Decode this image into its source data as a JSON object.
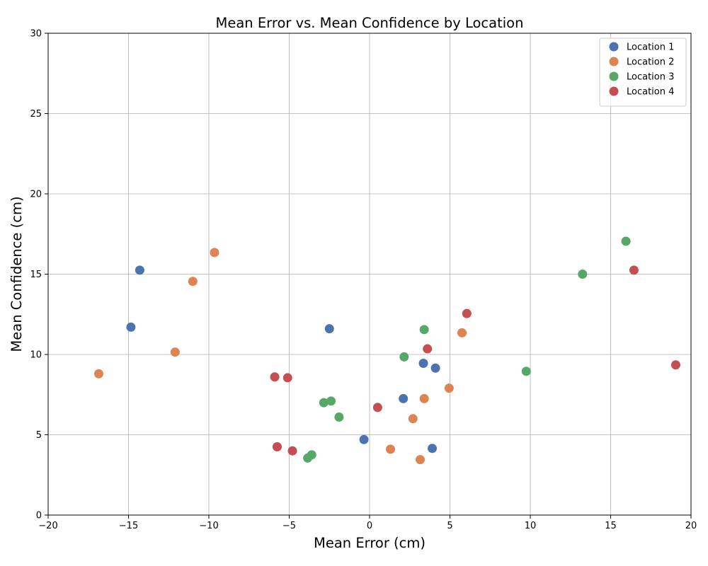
{
  "chart_data": {
    "type": "scatter",
    "title": "Mean Error vs. Mean Confidence by Location",
    "xlabel": "Mean Error (cm)",
    "ylabel": "Mean Confidence (cm)",
    "xlim": [
      -20,
      20
    ],
    "ylim": [
      0,
      30
    ],
    "xticks": [
      -20,
      -15,
      -10,
      -5,
      0,
      5,
      10,
      15,
      20
    ],
    "yticks": [
      0,
      5,
      10,
      15,
      20,
      25,
      30
    ],
    "grid": true,
    "legend_position": "top-right",
    "series": [
      {
        "name": "Location 1",
        "color": "#4c72b0",
        "points": [
          [
            -14.3,
            15.25
          ],
          [
            -14.85,
            11.7
          ],
          [
            -2.5,
            11.6
          ],
          [
            3.35,
            9.45
          ],
          [
            4.1,
            9.15
          ],
          [
            2.1,
            7.25
          ],
          [
            -0.35,
            4.7
          ],
          [
            3.9,
            4.15
          ]
        ]
      },
      {
        "name": "Location 2",
        "color": "#dd8452",
        "points": [
          [
            -9.65,
            16.35
          ],
          [
            -11.0,
            14.55
          ],
          [
            -12.1,
            10.15
          ],
          [
            -16.85,
            8.8
          ],
          [
            5.75,
            11.35
          ],
          [
            4.95,
            7.9
          ],
          [
            3.4,
            7.25
          ],
          [
            2.7,
            6.0
          ],
          [
            1.3,
            4.1
          ],
          [
            3.15,
            3.45
          ]
        ]
      },
      {
        "name": "Location 3",
        "color": "#55a868",
        "points": [
          [
            15.95,
            17.05
          ],
          [
            13.25,
            15.0
          ],
          [
            3.4,
            11.55
          ],
          [
            2.15,
            9.85
          ],
          [
            9.75,
            8.95
          ],
          [
            -2.4,
            7.1
          ],
          [
            -2.85,
            7.0
          ],
          [
            -1.9,
            6.1
          ],
          [
            -3.6,
            3.75
          ],
          [
            -3.85,
            3.55
          ]
        ]
      },
      {
        "name": "Location 4",
        "color": "#c44e52",
        "points": [
          [
            16.45,
            15.25
          ],
          [
            6.05,
            12.55
          ],
          [
            3.6,
            10.35
          ],
          [
            19.05,
            9.35
          ],
          [
            -5.9,
            8.6
          ],
          [
            -5.1,
            8.55
          ],
          [
            0.5,
            6.7
          ],
          [
            -5.75,
            4.25
          ],
          [
            -4.8,
            4.0
          ]
        ]
      }
    ]
  }
}
